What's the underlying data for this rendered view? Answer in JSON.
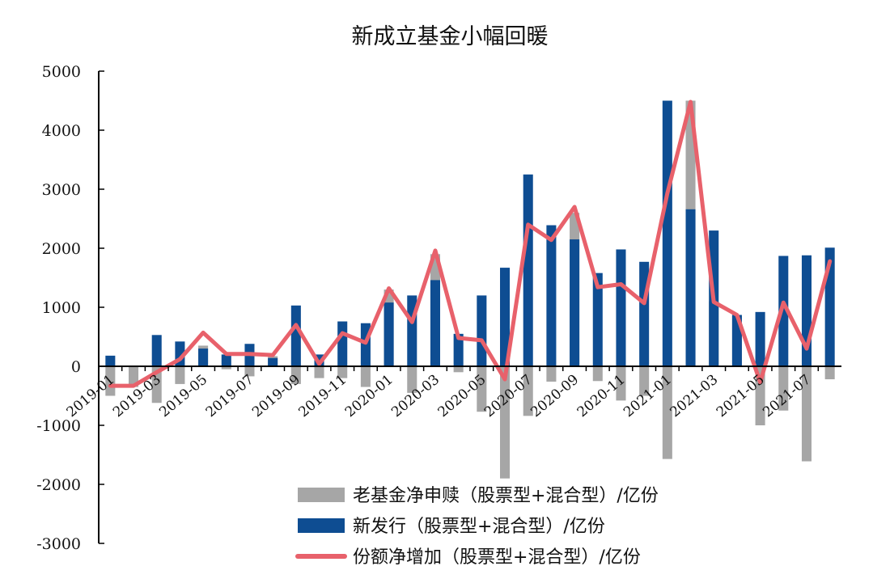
{
  "chart_data": {
    "type": "bar",
    "title": "新成立基金小幅回暖",
    "colors": {
      "old": "#a6a6a6",
      "new": "#0e4d92",
      "net": "#e8616b"
    },
    "ylim": [
      -3000,
      5000
    ],
    "yticks": [
      5000,
      4000,
      3000,
      2000,
      1000,
      0,
      -1000,
      -2000,
      -3000
    ],
    "x": [
      "2019-01",
      "2019-02",
      "2019-03",
      "2019-04",
      "2019-05",
      "2019-06",
      "2019-07",
      "2019-08",
      "2019-09",
      "2019-10",
      "2019-11",
      "2019-12",
      "2020-01",
      "2020-02",
      "2020-03",
      "2020-04",
      "2020-05",
      "2020-06",
      "2020-07",
      "2020-08",
      "2020-09",
      "2020-10",
      "2020-11",
      "2020-12",
      "2021-01",
      "2021-02",
      "2021-03",
      "2021-04",
      "2021-05",
      "2021-06",
      "2021-07",
      "2021-08"
    ],
    "xtick_labels": [
      "2019-01",
      "2019-03",
      "2019-05",
      "2019-07",
      "2019-09",
      "2019-11",
      "2020-01",
      "2020-03",
      "2020-05",
      "2020-07",
      "2020-09",
      "2020-11",
      "2021-01",
      "2021-03",
      "2021-05",
      "2021-07"
    ],
    "series": [
      {
        "name": "老基金净申赎（股票型+混合型）/亿份",
        "kind": "bar",
        "values": [
          -500,
          -350,
          -620,
          -300,
          350,
          -50,
          -170,
          170,
          -300,
          -200,
          -200,
          -350,
          1300,
          -450,
          1900,
          -100,
          -770,
          -1900,
          -840,
          -260,
          2600,
          -250,
          -580,
          -500,
          -1570,
          4500,
          1100,
          870,
          -1000,
          -750,
          -1610,
          -220
        ]
      },
      {
        "name": "新发行（股票型+混合型）/亿份",
        "kind": "bar",
        "values": [
          180,
          0,
          530,
          420,
          300,
          200,
          380,
          140,
          1030,
          200,
          760,
          730,
          1080,
          1200,
          1460,
          550,
          1200,
          1670,
          3250,
          2390,
          2150,
          1580,
          1980,
          1770,
          4500,
          2660,
          2300,
          870,
          920,
          1870,
          1880,
          2010
        ]
      },
      {
        "name": "份额净增加（股票型+混合型）/亿份",
        "kind": "line",
        "values": [
          -330,
          -330,
          -100,
          120,
          570,
          210,
          210,
          190,
          700,
          40,
          560,
          400,
          1320,
          750,
          1960,
          480,
          440,
          -220,
          2400,
          2140,
          2700,
          1340,
          1390,
          1070,
          2930,
          4480,
          1090,
          870,
          -270,
          1080,
          300,
          1780
        ]
      }
    ],
    "legend_position": "bottom-right"
  }
}
